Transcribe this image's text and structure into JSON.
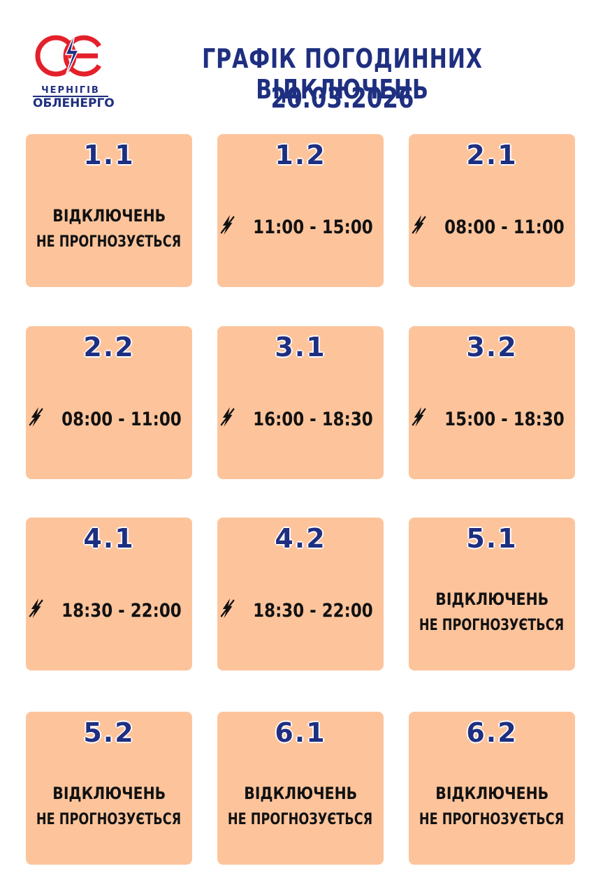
{
  "header": {
    "title": "ГРАФІК ПОГОДИННИХ ВІДКЛЮЧЕНЬ",
    "date": "20.03.2026",
    "logo": {
      "top": "ЧЕРНІГІВ",
      "bottom": "ОБЛЕНЕРГО"
    }
  },
  "cards": [
    {
      "group": "1.1",
      "lines": [
        "ВІДКЛЮЧЕНЬ",
        "НЕ ПРОГНОЗУЄТЬСЯ"
      ]
    },
    {
      "group": "1.2",
      "time": "11:00 - 15:00"
    },
    {
      "group": "2.1",
      "time": "08:00 - 11:00"
    },
    {
      "group": "2.2",
      "time": "08:00 - 11:00"
    },
    {
      "group": "3.1",
      "time": "16:00 - 18:30"
    },
    {
      "group": "3.2",
      "time": "15:00 - 18:30"
    },
    {
      "group": "4.1",
      "time": "18:30 - 22:00"
    },
    {
      "group": "4.2",
      "time": "18:30 - 22:00"
    },
    {
      "group": "5.1",
      "lines": [
        "ВІДКЛЮЧЕНЬ",
        "НЕ ПРОГНОЗУЄТЬСЯ"
      ]
    },
    {
      "group": "5.2",
      "lines": [
        "ВІДКЛЮЧЕНЬ",
        "НЕ ПРОГНОЗУЄТЬСЯ"
      ]
    },
    {
      "group": "6.1",
      "lines": [
        "ВІДКЛЮЧЕНЬ",
        "НЕ ПРОГНОЗУЄТЬСЯ"
      ]
    },
    {
      "group": "6.2",
      "lines": [
        "ВІДКЛЮЧЕНЬ",
        "НЕ ПРОГНОЗУЄТЬСЯ"
      ]
    }
  ]
}
